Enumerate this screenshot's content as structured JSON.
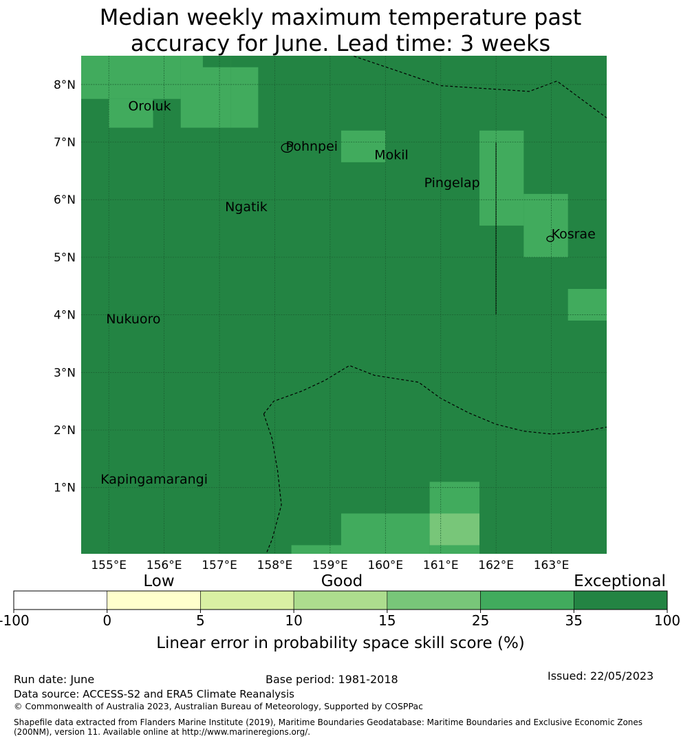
{
  "title": {
    "line1": "Median weekly maximum temperature past",
    "line2": "accuracy for June. Lead time: 3 weeks"
  },
  "map": {
    "lon_range": [
      154.5,
      164.0
    ],
    "lat_range": [
      -0.15,
      8.5
    ],
    "lon_ticks": [
      "155°E",
      "156°E",
      "157°E",
      "158°E",
      "159°E",
      "160°E",
      "161°E",
      "162°E",
      "163°E"
    ],
    "lat_ticks": [
      "1°N",
      "2°N",
      "3°N",
      "4°N",
      "5°N",
      "6°N",
      "7°N",
      "8°N"
    ],
    "gridlines": true,
    "background_color": "#238443",
    "cells": [
      {
        "lon": [
          154.5,
          156.3
        ],
        "lat": [
          7.75,
          8.5
        ],
        "color": "#41ab5d"
      },
      {
        "lon": [
          156.3,
          157.2
        ],
        "lat": [
          7.25,
          8.5
        ],
        "color": "#41ab5d"
      },
      {
        "lon": [
          157.2,
          157.7
        ],
        "lat": [
          7.25,
          8.3
        ],
        "color": "#41ab5d"
      },
      {
        "lon": [
          155.0,
          155.8
        ],
        "lat": [
          7.25,
          7.75
        ],
        "color": "#41ab5d"
      },
      {
        "lon": [
          156.7,
          157.2
        ],
        "lat": [
          8.3,
          8.5
        ],
        "color": "#238443"
      },
      {
        "lon": [
          159.2,
          160.0
        ],
        "lat": [
          6.65,
          7.2
        ],
        "color": "#41ab5d"
      },
      {
        "lon": [
          161.7,
          162.5
        ],
        "lat": [
          5.55,
          7.2
        ],
        "color": "#41ab5d"
      },
      {
        "lon": [
          162.5,
          163.3
        ],
        "lat": [
          5.0,
          6.1
        ],
        "color": "#41ab5d"
      },
      {
        "lon": [
          163.3,
          164.0
        ],
        "lat": [
          3.9,
          4.45
        ],
        "color": "#41ab5d"
      },
      {
        "lon": [
          160.8,
          161.7
        ],
        "lat": [
          -0.15,
          1.1
        ],
        "color": "#41ab5d"
      },
      {
        "lon": [
          159.2,
          160.8
        ],
        "lat": [
          -0.15,
          0.55
        ],
        "color": "#41ab5d"
      },
      {
        "lon": [
          158.3,
          159.2
        ],
        "lat": [
          -0.15,
          0.0
        ],
        "color": "#41ab5d"
      },
      {
        "lon": [
          160.8,
          161.7
        ],
        "lat": [
          0.0,
          0.55
        ],
        "color": "#78c679"
      }
    ],
    "places": [
      {
        "name": "Oroluk",
        "lon": 155.35,
        "lat": 7.55
      },
      {
        "name": "Pohnpei",
        "lon": 158.2,
        "lat": 6.85
      },
      {
        "name": "Mokil",
        "lon": 159.8,
        "lat": 6.7
      },
      {
        "name": "Pingelap",
        "lon": 160.7,
        "lat": 6.22
      },
      {
        "name": "Ngatik",
        "lon": 157.1,
        "lat": 5.8
      },
      {
        "name": "Kosrae",
        "lon": 163.0,
        "lat": 5.33
      },
      {
        "name": "Nukuoro",
        "lon": 154.95,
        "lat": 3.85
      },
      {
        "name": "Kapingamarangi",
        "lon": 154.85,
        "lat": 1.07
      }
    ]
  },
  "legend": {
    "category_labels": [
      "Low",
      "Good",
      "Exceptional"
    ],
    "bin_colors": [
      "#ffffff",
      "#ffffcc",
      "#d9f0a3",
      "#addd8e",
      "#78c679",
      "#41ab5d",
      "#238443"
    ],
    "tick_labels": [
      "-100",
      "0",
      "5",
      "10",
      "15",
      "25",
      "35",
      "100"
    ],
    "axis_label": "Linear error in probability space skill score (%)"
  },
  "footer": {
    "run_date": "Run date: June",
    "base_period": "Base period: 1981-2018",
    "issued": "Issued: 22/05/2023",
    "data_source": "Data source: ACCESS-S2 and ERA5 Climate Reanalysis",
    "copyright": "© Commonwealth of Australia 2023, Australian Bureau of Meteorology, Supported by COSPPac",
    "shapefile_line1": "Shapefile data extracted from Flanders Marine Institute (2019), Maritime Boundaries Geodatabase: Maritime Boundaries and Exclusive Economic Zones",
    "shapefile_line2": "(200NM), version 11. Available online at http://www.marineregions.org/."
  }
}
